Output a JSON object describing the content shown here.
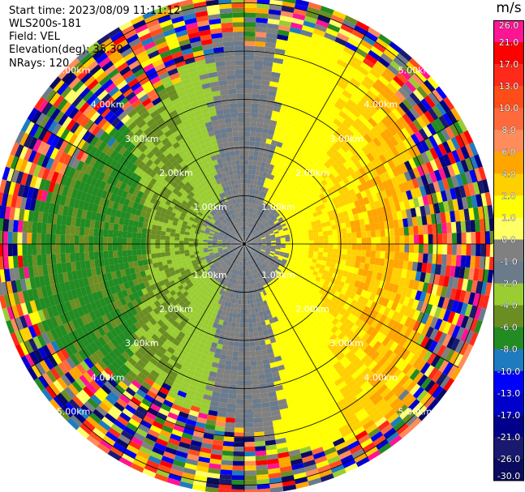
{
  "header": {
    "start_time": "Start time: 2023/08/09 11:11:12",
    "instrument": "WLS200s-181",
    "field": "Field: VEL",
    "elevation": "Elevation(deg): 35.30",
    "nrays": "NRays: 120"
  },
  "chart_data": {
    "type": "heatmap",
    "projection": "polar-ppi",
    "field": "VEL",
    "n_rays": 120,
    "range_ring_labels": [
      "1.00km",
      "2.00km",
      "3.00km",
      "4.00km",
      "5.00km"
    ],
    "range_rings_km": [
      1,
      2,
      3,
      4,
      5
    ],
    "colorbar": {
      "unit": "m/s",
      "ticks": [
        "26.0",
        "21.0",
        "17.0",
        "13.0",
        "10.0",
        "8.0",
        "6.0",
        "4.0",
        "2.0",
        "1.0",
        "0.0",
        "-1.0",
        "-2.0",
        "-4.0",
        "-6.0",
        "-8.0",
        "-10.0",
        "-13.0",
        "-17.0",
        "-21.0",
        "-26.0",
        "-30.0"
      ],
      "bin_colors": [
        "#ff1493",
        "#ff0000",
        "#ff2a1a",
        "#ff4d1a",
        "#ff6a3d",
        "#ff8c5a",
        "#ffa500",
        "#ffd000",
        "#ffff00",
        "#ffff66",
        "#808080",
        "#6b7b8c",
        "#9acd32",
        "#6b8e23",
        "#228b22",
        "#1e7bbf",
        "#0000ff",
        "#0000cd",
        "#00008b",
        "#191970",
        "#0a0a60"
      ]
    }
  }
}
